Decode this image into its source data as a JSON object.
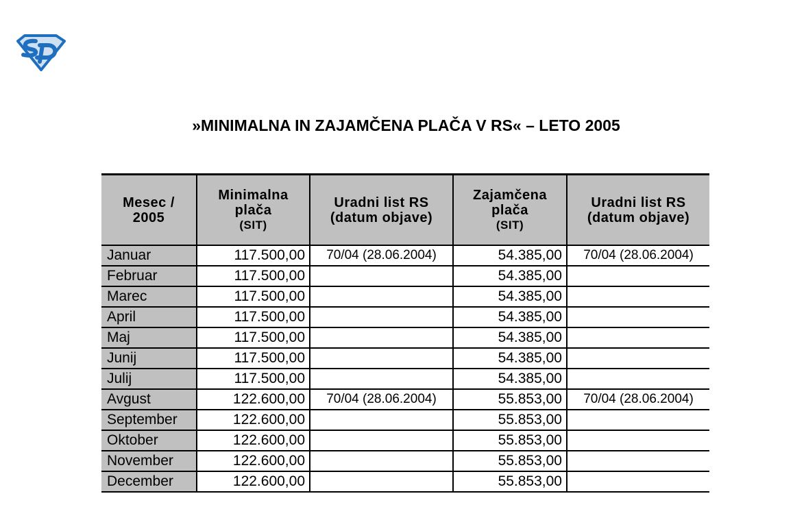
{
  "logo": {
    "text": "SD",
    "color": "#1f6fc0",
    "fill": "#cfe0f2"
  },
  "title": "»MINIMALNA IN ZAJAMČENA PLAČA V RS« – LETO 2005",
  "table": {
    "headers": [
      {
        "lines": [
          "Mesec /",
          "2005"
        ],
        "sub": ""
      },
      {
        "lines": [
          "Minimalna",
          "plača"
        ],
        "sub": "(SIT)"
      },
      {
        "lines": [
          "Uradni list RS",
          "(datum objave)"
        ],
        "sub": ""
      },
      {
        "lines": [
          "Zajamčena",
          "plača"
        ],
        "sub": "(SIT)"
      },
      {
        "lines": [
          "Uradni list RS",
          "(datum objave)"
        ],
        "sub": ""
      }
    ],
    "rows": [
      [
        "Januar",
        "117.500,00",
        "70/04 (28.06.2004)",
        "54.385,00",
        "70/04 (28.06.2004)"
      ],
      [
        "Februar",
        "117.500,00",
        "",
        "54.385,00",
        ""
      ],
      [
        "Marec",
        "117.500,00",
        "",
        "54.385,00",
        ""
      ],
      [
        "April",
        "117.500,00",
        "",
        "54.385,00",
        ""
      ],
      [
        "Maj",
        "117.500,00",
        "",
        "54.385,00",
        ""
      ],
      [
        "Junij",
        "117.500,00",
        "",
        "54.385,00",
        ""
      ],
      [
        "Julij",
        "117.500,00",
        "",
        "54.385,00",
        ""
      ],
      [
        "Avgust",
        "122.600,00",
        "70/04 (28.06.2004)",
        "55.853,00",
        "70/04 (28.06.2004)"
      ],
      [
        "September",
        "122.600,00",
        "",
        "55.853,00",
        ""
      ],
      [
        "Oktober",
        "122.600,00",
        "",
        "55.853,00",
        ""
      ],
      [
        "November",
        "122.600,00",
        "",
        "55.853,00",
        ""
      ],
      [
        "December",
        "122.600,00",
        "",
        "55.853,00",
        ""
      ]
    ]
  }
}
